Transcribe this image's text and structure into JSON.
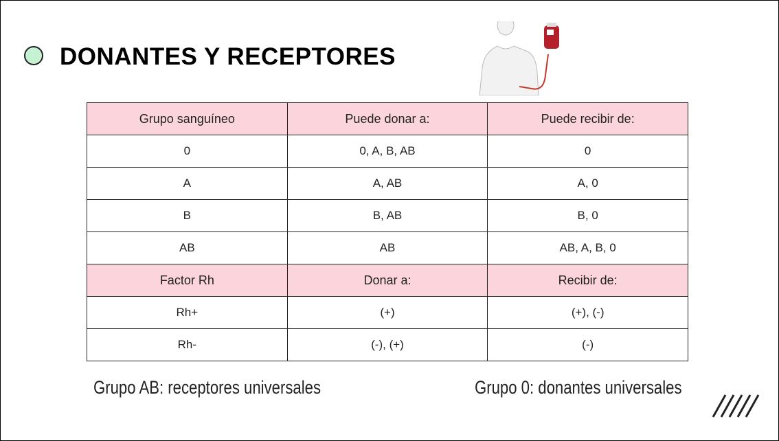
{
  "header": {
    "title": "DONANTES Y RECEPTORES"
  },
  "table": {
    "header": [
      "Grupo sanguíneo",
      "Puede donar a:",
      "Puede recibir de:"
    ],
    "rows": [
      [
        "0",
        "0, A, B, AB",
        "0"
      ],
      [
        "A",
        "A, AB",
        "A, 0"
      ],
      [
        "B",
        "B, AB",
        "B, 0"
      ],
      [
        "AB",
        "AB",
        "AB, A, B, 0"
      ]
    ],
    "rh_header": [
      "Factor Rh",
      "Donar a:",
      "Recibir de:"
    ],
    "rh_rows": [
      [
        "Rh+",
        "(+)",
        "(+), (-)"
      ],
      [
        "Rh-",
        "(-), (+)",
        "(-)"
      ]
    ]
  },
  "notes": [
    "Grupo AB: receptores universales",
    "Grupo 0: donantes universales"
  ]
}
